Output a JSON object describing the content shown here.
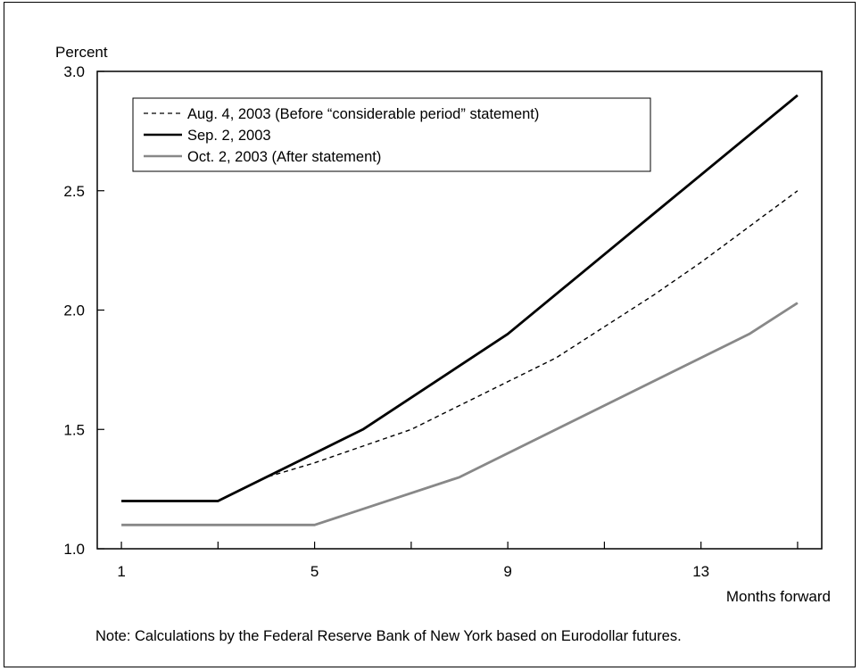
{
  "chart_data": {
    "type": "line",
    "title": "",
    "ylabel": "Percent",
    "xlabel": "Months forward",
    "note": "Note: Calculations by the Federal Reserve Bank of New York based on Eurodollar futures.",
    "xlim": [
      1,
      15
    ],
    "ylim": [
      1.0,
      3.0
    ],
    "x_ticks": [
      1,
      5,
      9,
      13
    ],
    "y_ticks": [
      "1.0",
      "1.5",
      "2.0",
      "2.5",
      "3.0"
    ],
    "legend_position": "top-left",
    "series": [
      {
        "name": "Aug. 4, 2003 (Before “considerable period” statement)",
        "style": "dashed",
        "color": "#000000",
        "x": [
          1,
          3,
          4,
          5,
          6,
          7,
          8,
          9,
          10,
          11,
          12,
          13,
          14,
          15
        ],
        "y": [
          1.2,
          1.2,
          1.3,
          1.36,
          1.43,
          1.5,
          1.6,
          1.7,
          1.8,
          1.93,
          2.06,
          2.2,
          2.35,
          2.5
        ]
      },
      {
        "name": "Sep. 2, 2003",
        "style": "solid",
        "color": "#000000",
        "x": [
          1,
          3,
          6,
          9,
          12,
          15
        ],
        "y": [
          1.2,
          1.2,
          1.5,
          1.9,
          2.4,
          2.9
        ]
      },
      {
        "name": "Oct. 2, 2003 (After statement)",
        "style": "solid",
        "color": "#888888",
        "x": [
          1,
          5,
          8,
          9,
          14,
          15
        ],
        "y": [
          1.1,
          1.1,
          1.3,
          1.4,
          1.9,
          2.03
        ]
      }
    ]
  }
}
